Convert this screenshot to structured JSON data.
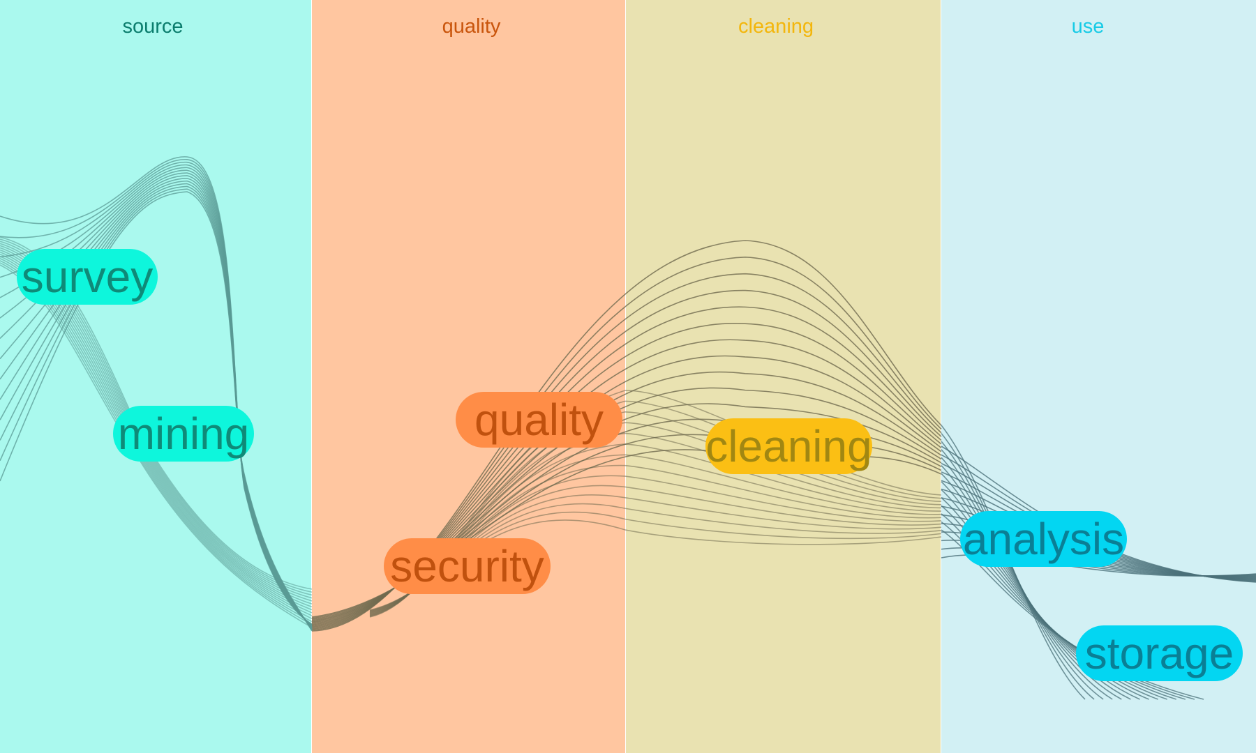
{
  "columns": [
    {
      "title": "source",
      "color": "#0b7d6d",
      "background": "#aaf9ee"
    },
    {
      "title": "quality",
      "color": "#c9550c",
      "background": "#ffc6a0"
    },
    {
      "title": "cleaning",
      "color": "#f3b60c",
      "background": "#e9e2b1"
    },
    {
      "title": "use",
      "color": "#17cbe6",
      "background": "#d2f0f4"
    }
  ],
  "nodes": {
    "survey": "survey",
    "mining": "mining",
    "quality": "quality",
    "security": "security",
    "cleaning": "cleaning",
    "analysis": "analysis",
    "storage": "storage"
  }
}
